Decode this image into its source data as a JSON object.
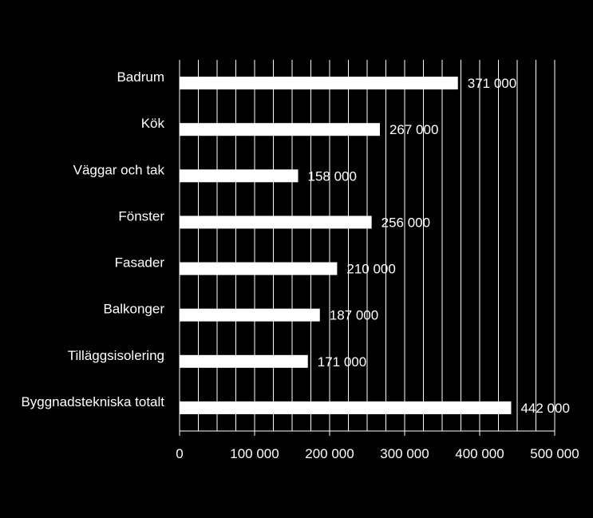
{
  "chart_data": {
    "type": "bar",
    "orientation": "horizontal",
    "title": "",
    "xlabel": "",
    "ylabel": "",
    "categories": [
      "Badrum",
      "Kök",
      "Väggar och tak",
      "Fönster",
      "Fasader",
      "Balkonger",
      "Tilläggsisolering",
      "Byggnadstekniska totalt"
    ],
    "values": [
      371000,
      267000,
      158000,
      256000,
      210000,
      187000,
      171000,
      442000
    ],
    "value_labels": [
      "371 000",
      "267 000",
      "158 000",
      "256 000",
      "210 000",
      "187 000",
      "171 000",
      "442 000"
    ],
    "xlim": [
      0,
      500000
    ],
    "x_ticks": [
      0,
      100000,
      200000,
      300000,
      400000,
      500000
    ],
    "x_tick_labels": [
      "0",
      "100 000",
      "200 000",
      "300 000",
      "400 000",
      "500 000"
    ],
    "minor_gridline_step": 25000,
    "grid": true,
    "legend": "none",
    "colors": {
      "background": "#000000",
      "bar": "#ffffff",
      "grid": "#ffffff",
      "text": "#ffffff"
    }
  }
}
